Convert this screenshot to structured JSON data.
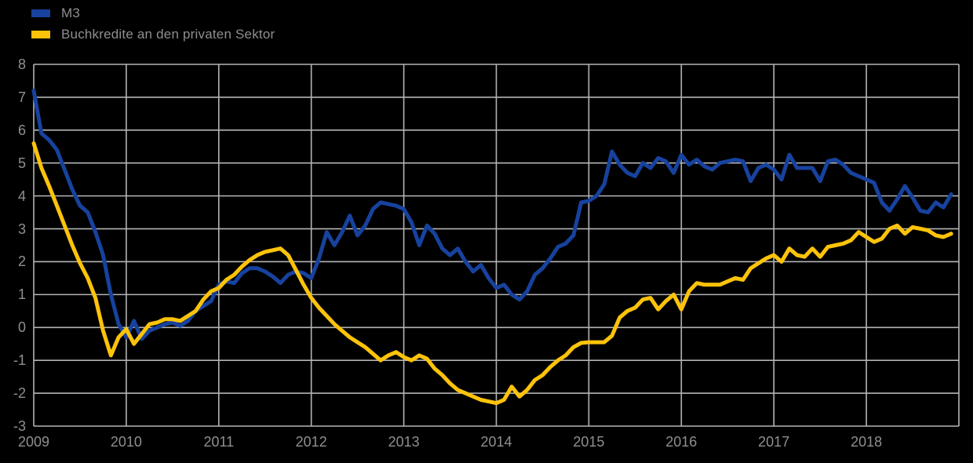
{
  "colors": {
    "background": "#000000",
    "grid": "#b4b4b4",
    "axis_text": "#8f8f8f",
    "m3_line": "#17429e",
    "loans_line": "#fcc30a"
  },
  "legend": {
    "items": [
      {
        "label": "M3",
        "color": "#17429e"
      },
      {
        "label": "Buchkredite an den privaten Sektor",
        "color": "#fcc30a"
      }
    ]
  },
  "chart_data": {
    "type": "line",
    "title": "",
    "frequency": "monthly",
    "x_start": "2009-01",
    "x_end": "2018-12",
    "x_tick_labels": [
      "2009",
      "2010",
      "2011",
      "2012",
      "2013",
      "2014",
      "2015",
      "2016",
      "2017",
      "2018"
    ],
    "y_tick_labels": [
      "8",
      "7",
      "6",
      "5",
      "4",
      "3",
      "2",
      "1",
      "0",
      "-1",
      "-2",
      "-3"
    ],
    "ylim": [
      -3,
      8
    ],
    "grid": true,
    "grid_color": "#b4b4b4",
    "legend_position": "top-left",
    "series": [
      {
        "name": "M3",
        "color": "#17429e",
        "data_name": "m3-line",
        "values": [
          7.2,
          5.9,
          5.7,
          5.4,
          4.8,
          4.2,
          3.7,
          3.5,
          2.9,
          2.2,
          1.0,
          0.1,
          -0.3,
          0.2,
          -0.35,
          -0.1,
          0.0,
          0.1,
          0.15,
          0.05,
          0.2,
          0.5,
          0.65,
          0.8,
          1.3,
          1.4,
          1.35,
          1.65,
          1.8,
          1.8,
          1.7,
          1.55,
          1.35,
          1.6,
          1.7,
          1.65,
          1.5,
          2.1,
          2.9,
          2.5,
          2.9,
          3.4,
          2.8,
          3.1,
          3.6,
          3.8,
          3.75,
          3.7,
          3.6,
          3.2,
          2.5,
          3.1,
          2.85,
          2.4,
          2.2,
          2.4,
          2.0,
          1.7,
          1.9,
          1.5,
          1.2,
          1.3,
          1.0,
          0.85,
          1.1,
          1.6,
          1.8,
          2.1,
          2.45,
          2.55,
          2.8,
          3.8,
          3.85,
          4.0,
          4.35,
          5.35,
          4.95,
          4.7,
          4.6,
          5.0,
          4.85,
          5.15,
          5.05,
          4.7,
          5.25,
          4.95,
          5.1,
          4.9,
          4.8,
          5.0,
          5.05,
          5.1,
          5.05,
          4.45,
          4.85,
          4.95,
          4.8,
          4.5,
          5.25,
          4.85,
          4.85,
          4.85,
          4.45,
          5.05,
          5.1,
          4.95,
          4.7,
          4.6,
          4.5,
          4.4,
          3.8,
          3.55,
          3.9,
          4.3,
          3.95,
          3.55,
          3.5,
          3.8,
          3.65,
          4.05
        ]
      },
      {
        "name": "Buchkredite an den privaten Sektor",
        "color": "#fcc30a",
        "data_name": "loans-line",
        "values": [
          5.6,
          4.85,
          4.3,
          3.7,
          3.1,
          2.5,
          1.95,
          1.5,
          0.9,
          -0.1,
          -0.85,
          -0.3,
          -0.05,
          -0.5,
          -0.2,
          0.1,
          0.15,
          0.25,
          0.25,
          0.2,
          0.35,
          0.5,
          0.85,
          1.1,
          1.2,
          1.45,
          1.6,
          1.85,
          2.05,
          2.2,
          2.3,
          2.35,
          2.4,
          2.2,
          1.75,
          1.3,
          0.9,
          0.6,
          0.35,
          0.1,
          -0.1,
          -0.3,
          -0.45,
          -0.6,
          -0.8,
          -1.0,
          -0.85,
          -0.75,
          -0.9,
          -1.0,
          -0.85,
          -0.95,
          -1.25,
          -1.45,
          -1.7,
          -1.9,
          -2.0,
          -2.1,
          -2.2,
          -2.25,
          -2.3,
          -2.2,
          -1.8,
          -2.1,
          -1.9,
          -1.6,
          -1.45,
          -1.2,
          -1.0,
          -0.85,
          -0.6,
          -0.47,
          -0.45,
          -0.45,
          -0.45,
          -0.25,
          0.3,
          0.5,
          0.6,
          0.85,
          0.9,
          0.55,
          0.8,
          1.0,
          0.55,
          1.1,
          1.35,
          1.3,
          1.3,
          1.3,
          1.4,
          1.5,
          1.45,
          1.8,
          1.95,
          2.1,
          2.2,
          2.0,
          2.4,
          2.2,
          2.15,
          2.4,
          2.15,
          2.45,
          2.5,
          2.55,
          2.65,
          2.9,
          2.75,
          2.6,
          2.7,
          3.0,
          3.1,
          2.85,
          3.05,
          3.0,
          2.95,
          2.8,
          2.75,
          2.85
        ]
      }
    ]
  }
}
